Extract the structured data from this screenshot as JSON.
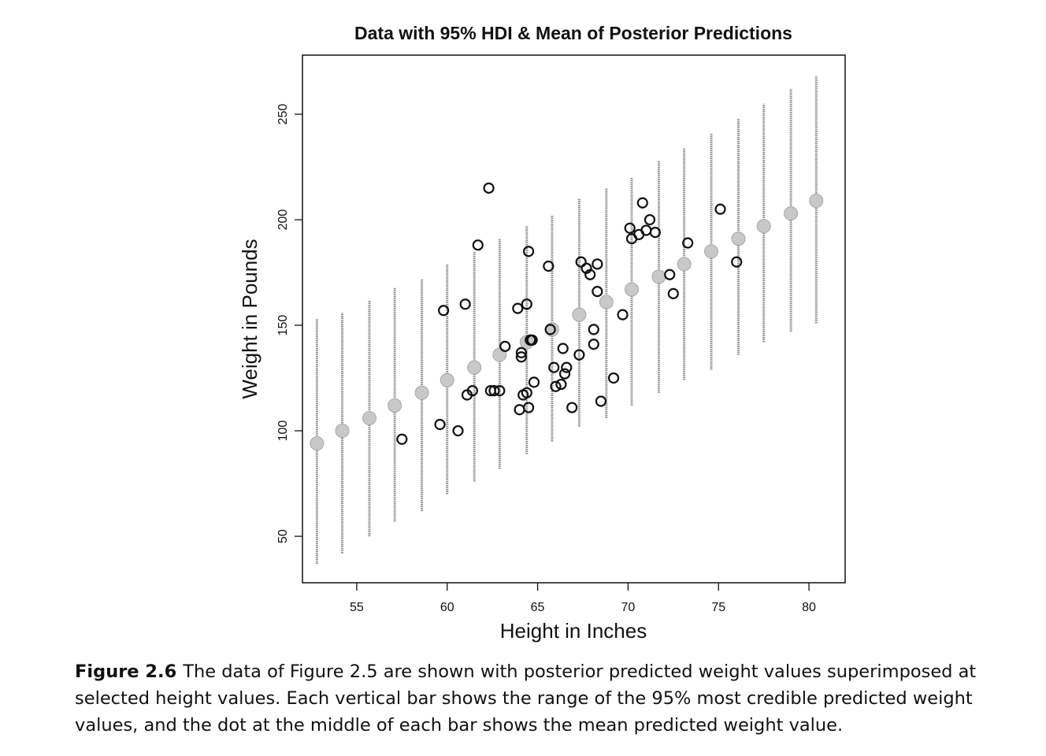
{
  "chart_data": {
    "type": "scatter",
    "title": "Data with 95% HDI & Mean of Posterior Predictions",
    "xlabel": "Height in Inches",
    "ylabel": "Weight in Pounds",
    "xlim": [
      52,
      82
    ],
    "ylim": [
      28,
      278
    ],
    "xticks": [
      55,
      60,
      65,
      70,
      75,
      80
    ],
    "yticks": [
      50,
      100,
      150,
      200,
      250
    ],
    "grid": false,
    "legend": "none",
    "colors": {
      "observed": "#111111",
      "predicted_mean": "#c8c8c8",
      "hdi_bar": "#8a8a8a"
    },
    "series": [
      {
        "kind": "hdi_interval",
        "x": [
          52.8,
          54.2,
          55.7,
          57.1,
          58.6,
          60.0,
          61.5,
          62.9,
          64.4,
          65.8,
          67.3,
          68.8,
          70.2,
          71.7,
          73.1,
          74.6,
          76.1,
          77.5,
          79.0,
          80.4
        ],
        "mean": [
          94,
          100,
          106,
          112,
          118,
          124,
          130,
          136,
          142,
          148,
          155,
          161,
          167,
          173,
          179,
          185,
          191,
          197,
          203,
          209
        ],
        "low": [
          37,
          42,
          50,
          57,
          62,
          70,
          76,
          82,
          89,
          95,
          102,
          106,
          112,
          118,
          124,
          129,
          136,
          142,
          147,
          151
        ],
        "high": [
          153,
          156,
          162,
          168,
          172,
          179,
          185,
          191,
          197,
          202,
          210,
          215,
          220,
          228,
          234,
          241,
          248,
          255,
          262,
          268
        ]
      },
      {
        "kind": "observed",
        "x": [
          57.5,
          59.6,
          59.8,
          60.6,
          61.0,
          61.1,
          61.4,
          61.7,
          62.3,
          62.4,
          62.6,
          62.9,
          63.2,
          63.9,
          64.0,
          64.1,
          64.1,
          64.2,
          64.4,
          64.4,
          64.5,
          64.5,
          64.6,
          64.6,
          64.7,
          64.8,
          65.6,
          65.7,
          65.9,
          66.0,
          66.3,
          66.4,
          66.5,
          66.6,
          66.9,
          67.3,
          67.4,
          67.7,
          67.9,
          68.1,
          68.1,
          68.3,
          68.3,
          68.5,
          69.2,
          69.7,
          70.1,
          70.2,
          70.6,
          70.8,
          71.0,
          71.2,
          71.5,
          72.3,
          72.5,
          73.3,
          75.1,
          76.0
        ],
        "y": [
          96,
          103,
          157,
          100,
          160,
          117,
          119,
          188,
          215,
          119,
          119,
          119,
          140,
          158,
          110,
          137,
          135,
          117,
          160,
          118,
          111,
          185,
          143,
          143,
          143,
          123,
          178,
          148,
          130,
          121,
          122,
          139,
          127,
          130,
          111,
          136,
          180,
          177,
          174,
          148,
          141,
          179,
          166,
          114,
          125,
          155,
          196,
          191,
          193,
          208,
          195,
          200,
          194,
          174,
          165,
          189,
          205,
          180
        ]
      }
    ]
  },
  "caption": {
    "label": "Figure 2.6",
    "text": "The data of Figure 2.5 are shown with posterior predicted weight values superimposed at selected height values. Each vertical bar shows the range of the 95% most credible predicted weight values, and the dot at the middle of each bar shows the mean predicted weight value."
  }
}
